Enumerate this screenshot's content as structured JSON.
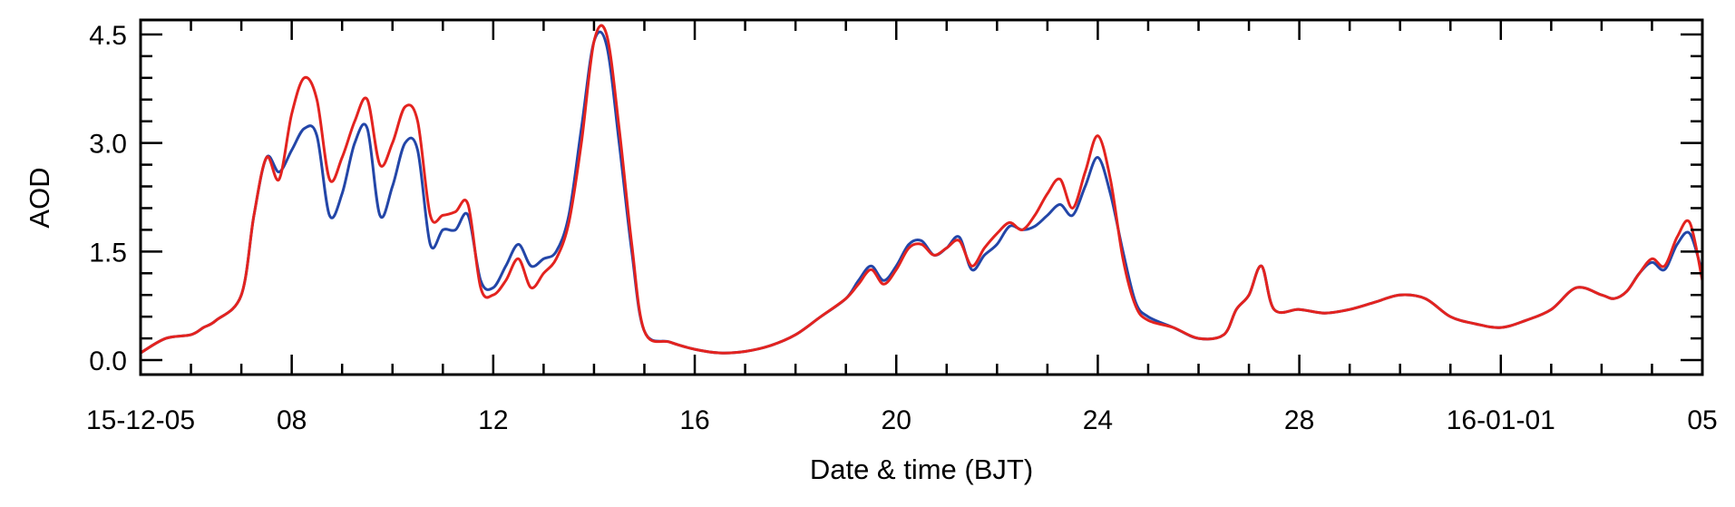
{
  "chart_data": {
    "type": "line",
    "xlabel": "Date & time (BJT)",
    "ylabel": "AOD",
    "x_range": [
      "2015-12-05",
      "2016-01-05"
    ],
    "ylim": [
      -0.2,
      4.7
    ],
    "grid": false,
    "x_ticks": [
      {
        "date": "2015-12-05",
        "label": "15-12-05"
      },
      {
        "date": "2015-12-08",
        "label": "08"
      },
      {
        "date": "2015-12-12",
        "label": "12"
      },
      {
        "date": "2015-12-16",
        "label": "16"
      },
      {
        "date": "2015-12-20",
        "label": "20"
      },
      {
        "date": "2015-12-24",
        "label": "24"
      },
      {
        "date": "2015-12-28",
        "label": "28"
      },
      {
        "date": "2016-01-01",
        "label": "16-01-01"
      },
      {
        "date": "2016-01-05",
        "label": "05"
      }
    ],
    "y_ticks": [
      {
        "value": 0.0,
        "label": "0.0"
      },
      {
        "value": 1.5,
        "label": "1.5"
      },
      {
        "value": 3.0,
        "label": "3.0"
      },
      {
        "value": 4.5,
        "label": "4.5"
      }
    ],
    "series": [
      {
        "color": "#2346a8",
        "x": [
          "2015-12-05",
          "2015-12-05 12:00",
          "2015-12-06",
          "2015-12-06 06:00",
          "2015-12-06 12:00",
          "2015-12-07",
          "2015-12-07 06:00",
          "2015-12-07 12:00",
          "2015-12-07 18:00",
          "2015-12-08",
          "2015-12-08 06:00",
          "2015-12-08 12:00",
          "2015-12-08 18:00",
          "2015-12-09",
          "2015-12-09 06:00",
          "2015-12-09 12:00",
          "2015-12-09 18:00",
          "2015-12-10",
          "2015-12-10 06:00",
          "2015-12-10 12:00",
          "2015-12-10 18:00",
          "2015-12-11",
          "2015-12-11 06:00",
          "2015-12-11 12:00",
          "2015-12-11 18:00",
          "2015-12-12",
          "2015-12-12 06:00",
          "2015-12-12 12:00",
          "2015-12-12 18:00",
          "2015-12-13",
          "2015-12-13 06:00",
          "2015-12-13 12:00",
          "2015-12-13 18:00",
          "2015-12-14",
          "2015-12-14 06:00",
          "2015-12-14 12:00",
          "2015-12-14 18:00",
          "2015-12-15",
          "2015-12-15 12:00",
          "2015-12-16",
          "2015-12-16 12:00",
          "2015-12-17",
          "2015-12-17 12:00",
          "2015-12-18",
          "2015-12-18 12:00",
          "2015-12-19",
          "2015-12-19 06:00",
          "2015-12-19 12:00",
          "2015-12-19 18:00",
          "2015-12-20",
          "2015-12-20 06:00",
          "2015-12-20 12:00",
          "2015-12-20 18:00",
          "2015-12-21",
          "2015-12-21 06:00",
          "2015-12-21 12:00",
          "2015-12-21 18:00",
          "2015-12-22",
          "2015-12-22 06:00",
          "2015-12-22 12:00",
          "2015-12-22 18:00",
          "2015-12-23",
          "2015-12-23 06:00",
          "2015-12-23 12:00",
          "2015-12-23 18:00",
          "2015-12-24",
          "2015-12-24 06:00",
          "2015-12-24 12:00",
          "2015-12-24 18:00",
          "2015-12-25",
          "2015-12-25 12:00",
          "2015-12-26",
          "2015-12-26 12:00",
          "2015-12-26 18:00",
          "2015-12-27",
          "2015-12-27 06:00",
          "2015-12-27 12:00",
          "2015-12-28",
          "2015-12-28 12:00",
          "2015-12-29",
          "2015-12-29 12:00",
          "2015-12-30",
          "2015-12-30 12:00",
          "2015-12-31",
          "2015-12-31 12:00",
          "2016-01-01",
          "2016-01-01 12:00",
          "2016-01-02",
          "2016-01-02 12:00",
          "2016-01-03",
          "2016-01-03 06:00",
          "2016-01-03 12:00",
          "2016-01-03 18:00",
          "2016-01-04",
          "2016-01-04 06:00",
          "2016-01-04 12:00",
          "2016-01-04 18:00",
          "2016-01-05"
        ],
        "y": [
          0.1,
          0.3,
          0.35,
          0.45,
          0.55,
          0.9,
          2.0,
          2.8,
          2.6,
          2.9,
          3.2,
          3.1,
          2.0,
          2.3,
          3.0,
          3.2,
          2.0,
          2.4,
          3.0,
          2.9,
          1.6,
          1.8,
          1.8,
          2.0,
          1.1,
          1.0,
          1.3,
          1.6,
          1.3,
          1.4,
          1.5,
          2.0,
          3.2,
          4.4,
          4.35,
          3.0,
          1.5,
          0.4,
          0.25,
          0.15,
          0.1,
          0.12,
          0.2,
          0.35,
          0.6,
          0.85,
          1.1,
          1.3,
          1.1,
          1.3,
          1.6,
          1.65,
          1.45,
          1.55,
          1.7,
          1.25,
          1.45,
          1.6,
          1.85,
          1.8,
          1.85,
          2.0,
          2.15,
          2.0,
          2.4,
          2.8,
          2.3,
          1.5,
          0.8,
          0.6,
          0.45,
          0.3,
          0.35,
          0.7,
          0.9,
          1.3,
          0.7,
          0.7,
          0.65,
          0.7,
          0.8,
          0.9,
          0.85,
          0.6,
          0.5,
          0.45,
          0.55,
          0.7,
          1.0,
          0.9,
          0.85,
          0.95,
          1.2,
          1.35,
          1.25,
          1.6,
          1.75,
          1.2
        ]
      },
      {
        "color": "#e3231f",
        "x": [
          "2015-12-05",
          "2015-12-05 12:00",
          "2015-12-06",
          "2015-12-06 06:00",
          "2015-12-06 12:00",
          "2015-12-07",
          "2015-12-07 06:00",
          "2015-12-07 12:00",
          "2015-12-07 18:00",
          "2015-12-08",
          "2015-12-08 06:00",
          "2015-12-08 12:00",
          "2015-12-08 18:00",
          "2015-12-09",
          "2015-12-09 06:00",
          "2015-12-09 12:00",
          "2015-12-09 18:00",
          "2015-12-10",
          "2015-12-10 06:00",
          "2015-12-10 12:00",
          "2015-12-10 18:00",
          "2015-12-11",
          "2015-12-11 06:00",
          "2015-12-11 12:00",
          "2015-12-11 18:00",
          "2015-12-12",
          "2015-12-12 06:00",
          "2015-12-12 12:00",
          "2015-12-12 18:00",
          "2015-12-13",
          "2015-12-13 06:00",
          "2015-12-13 12:00",
          "2015-12-13 18:00",
          "2015-12-14",
          "2015-12-14 06:00",
          "2015-12-14 12:00",
          "2015-12-14 18:00",
          "2015-12-15",
          "2015-12-15 12:00",
          "2015-12-16",
          "2015-12-16 12:00",
          "2015-12-17",
          "2015-12-17 12:00",
          "2015-12-18",
          "2015-12-18 12:00",
          "2015-12-19",
          "2015-12-19 06:00",
          "2015-12-19 12:00",
          "2015-12-19 18:00",
          "2015-12-20",
          "2015-12-20 06:00",
          "2015-12-20 12:00",
          "2015-12-20 18:00",
          "2015-12-21",
          "2015-12-21 06:00",
          "2015-12-21 12:00",
          "2015-12-21 18:00",
          "2015-12-22",
          "2015-12-22 06:00",
          "2015-12-22 12:00",
          "2015-12-22 18:00",
          "2015-12-23",
          "2015-12-23 06:00",
          "2015-12-23 12:00",
          "2015-12-23 18:00",
          "2015-12-24",
          "2015-12-24 06:00",
          "2015-12-24 12:00",
          "2015-12-24 18:00",
          "2015-12-25",
          "2015-12-25 12:00",
          "2015-12-26",
          "2015-12-26 12:00",
          "2015-12-26 18:00",
          "2015-12-27",
          "2015-12-27 06:00",
          "2015-12-27 12:00",
          "2015-12-28",
          "2015-12-28 12:00",
          "2015-12-29",
          "2015-12-29 12:00",
          "2015-12-30",
          "2015-12-30 12:00",
          "2015-12-31",
          "2015-12-31 12:00",
          "2016-01-01",
          "2016-01-01 12:00",
          "2016-01-02",
          "2016-01-02 12:00",
          "2016-01-03",
          "2016-01-03 06:00",
          "2016-01-03 12:00",
          "2016-01-03 18:00",
          "2016-01-04",
          "2016-01-04 06:00",
          "2016-01-04 12:00",
          "2016-01-04 18:00",
          "2016-01-05"
        ],
        "y": [
          0.1,
          0.3,
          0.35,
          0.45,
          0.55,
          0.9,
          2.0,
          2.8,
          2.5,
          3.4,
          3.9,
          3.6,
          2.5,
          2.8,
          3.3,
          3.6,
          2.7,
          3.0,
          3.5,
          3.3,
          2.0,
          2.0,
          2.05,
          2.15,
          1.0,
          0.9,
          1.1,
          1.4,
          1.0,
          1.2,
          1.4,
          1.9,
          3.0,
          4.4,
          4.5,
          3.2,
          1.6,
          0.4,
          0.25,
          0.15,
          0.1,
          0.12,
          0.2,
          0.35,
          0.6,
          0.85,
          1.05,
          1.25,
          1.05,
          1.25,
          1.55,
          1.6,
          1.45,
          1.55,
          1.65,
          1.3,
          1.55,
          1.75,
          1.9,
          1.8,
          2.0,
          2.3,
          2.5,
          2.1,
          2.6,
          3.1,
          2.5,
          1.4,
          0.75,
          0.55,
          0.45,
          0.3,
          0.35,
          0.7,
          0.9,
          1.3,
          0.7,
          0.7,
          0.65,
          0.7,
          0.8,
          0.9,
          0.85,
          0.6,
          0.5,
          0.45,
          0.55,
          0.7,
          1.0,
          0.9,
          0.85,
          0.95,
          1.2,
          1.4,
          1.3,
          1.7,
          1.9,
          1.1
        ]
      }
    ]
  }
}
